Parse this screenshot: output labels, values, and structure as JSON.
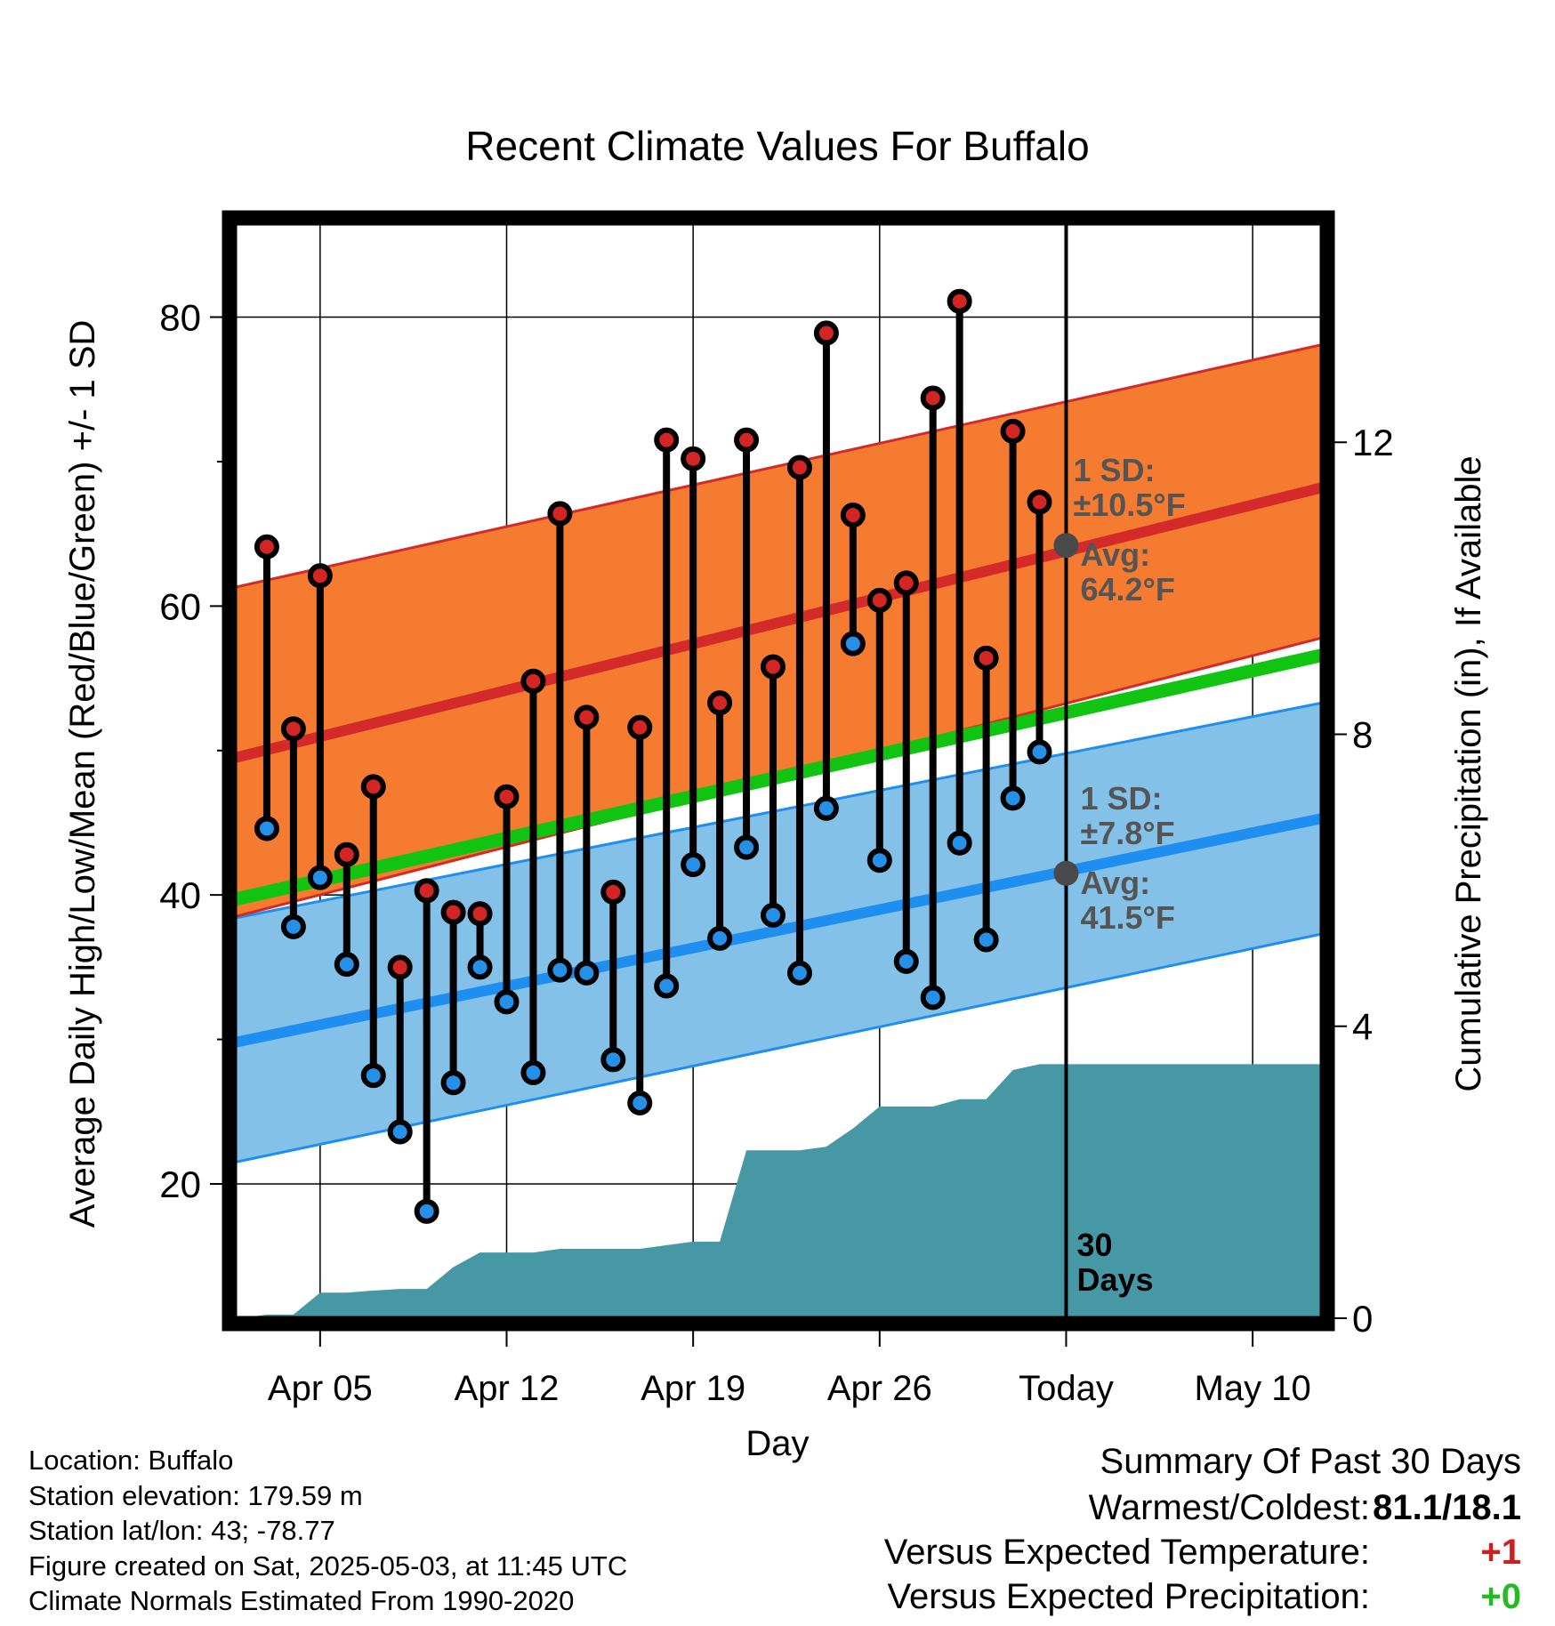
{
  "chart_data": {
    "type": "line",
    "title": "Recent Climate Values For Buffalo",
    "xlabel": "Day",
    "ylabel": "Average Daily High/Low/Mean (Red/Blue/Green) +/- 1 SD",
    "y2label": "Cumulative Precipitation (in), If Available",
    "xticks": [
      "Apr 05",
      "Apr 12",
      "Apr 19",
      "Apr 26",
      "Today",
      "May 10"
    ],
    "xtick_days": [
      5,
      12,
      19,
      26,
      33,
      40
    ],
    "xlim": [
      1.8,
      42.6
    ],
    "ylim": [
      10.7,
      86.5
    ],
    "yticks": [
      20,
      40,
      60,
      80
    ],
    "y2lim": [
      0,
      15
    ],
    "y2ticks": [
      0,
      4,
      8,
      12
    ],
    "grid": true,
    "today_day": 33,
    "normals": {
      "high_mean": [
        49.5,
        68.2
      ],
      "high_upper": [
        61.3,
        78.1
      ],
      "high_lower": [
        38.5,
        57.8
      ],
      "low_mean": [
        29.8,
        45.3
      ],
      "low_upper": [
        38.4,
        53.3
      ],
      "low_lower": [
        21.5,
        37.3
      ],
      "mean": [
        39.7,
        56.6
      ]
    },
    "high_sd_label": [
      "1 SD:",
      "±10.5°F"
    ],
    "high_avg_label": [
      "Avg:",
      "64.2°F"
    ],
    "high_avg_today": 64.2,
    "low_sd_label": [
      "1 SD:",
      "±7.8°F"
    ],
    "low_avg_label": [
      "Avg:",
      "41.5°F"
    ],
    "low_avg_today": 41.5,
    "days_label": [
      "30",
      "Days"
    ],
    "series": [
      {
        "name": "High",
        "days": [
          3,
          4,
          5,
          6,
          7,
          8,
          9,
          10,
          11,
          12,
          13,
          14,
          15,
          16,
          17,
          18,
          19,
          20,
          21,
          22,
          23,
          24,
          25,
          26,
          27,
          28,
          29,
          30,
          31,
          32
        ],
        "values": [
          64.1,
          51.5,
          62.1,
          42.8,
          47.5,
          35.0,
          40.3,
          38.8,
          38.7,
          46.8,
          54.8,
          66.4,
          52.3,
          40.2,
          51.6,
          71.5,
          70.2,
          53.3,
          71.5,
          55.8,
          69.6,
          78.9,
          66.3,
          60.4,
          61.6,
          74.4,
          81.1,
          56.4,
          72.1,
          67.2
        ]
      },
      {
        "name": "Low",
        "days": [
          3,
          4,
          5,
          6,
          7,
          8,
          9,
          10,
          11,
          12,
          13,
          14,
          15,
          16,
          17,
          18,
          19,
          20,
          21,
          22,
          23,
          24,
          25,
          26,
          27,
          28,
          29,
          30,
          31,
          32
        ],
        "values": [
          44.6,
          37.8,
          41.2,
          35.2,
          27.5,
          23.6,
          18.1,
          27.0,
          35.0,
          32.6,
          27.7,
          34.8,
          34.6,
          28.6,
          25.6,
          33.7,
          42.1,
          37.0,
          43.3,
          38.6,
          34.6,
          46.0,
          57.4,
          42.4,
          35.4,
          32.9,
          43.6,
          36.9,
          46.7,
          49.9
        ]
      },
      {
        "name": "Cumulative Precipitation",
        "days": [
          2,
          3,
          4,
          5,
          6,
          7,
          8,
          9,
          10,
          11,
          12,
          13,
          14,
          15,
          16,
          17,
          18,
          19,
          20,
          21,
          22,
          23,
          24,
          25,
          26,
          27,
          28,
          29,
          30,
          31,
          32,
          33,
          42.6
        ],
        "values": [
          0.0,
          0.05,
          0.05,
          0.35,
          0.35,
          0.38,
          0.4,
          0.4,
          0.7,
          0.9,
          0.9,
          0.9,
          0.95,
          0.95,
          0.95,
          0.95,
          1.0,
          1.05,
          1.05,
          2.3,
          2.3,
          2.3,
          2.35,
          2.6,
          2.9,
          2.9,
          2.9,
          3.0,
          3.0,
          3.4,
          3.48,
          3.48,
          3.48
        ]
      }
    ]
  },
  "info": {
    "location": "Location: Buffalo",
    "elevation": "Station elevation: 179.59 m",
    "latlon": "Station lat/lon: 43; -78.77",
    "created": "Figure created on Sat, 2025-05-03, at 11:45 UTC",
    "normals": "Climate Normals Estimated From 1990-2020"
  },
  "summary": {
    "title": "Summary Of Past 30 Days",
    "warm_cold_label": "Warmest/Coldest:",
    "warm_cold_value": "81.1/18.1",
    "temp_label": "Versus Expected Temperature:",
    "temp_value": "+1",
    "precip_label": "Versus Expected Precipitation:",
    "precip_value": "+0"
  },
  "colors": {
    "high_band": "#f47b30",
    "high_line": "#d42a2a",
    "low_band": "#84c1e8",
    "low_line": "#1e8ef0",
    "mean_line": "#11c411",
    "precip_fill": "#4699a4",
    "high_dot": "#d42525",
    "low_dot": "#2590e8",
    "label_gray": "#555555",
    "avg_dot": "#4a4a4a",
    "temp_value": "#cc1f1f",
    "precip_value": "#22bb22"
  }
}
